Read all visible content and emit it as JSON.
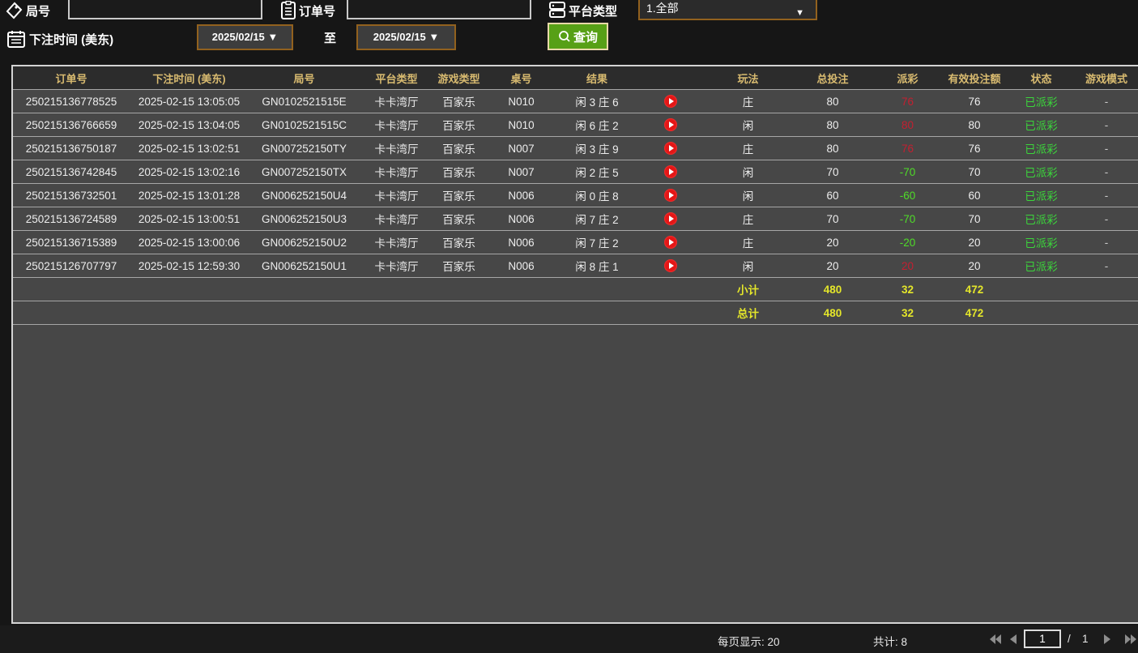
{
  "filters": {
    "round_label": "局号",
    "round_value": "",
    "order_label": "订单号",
    "order_value": "",
    "platform_label": "平台类型",
    "platform_value": "1.全部",
    "dropdown_arrow": "▼",
    "bet_time_label": "下注时间 (美东)",
    "date_from": "2025/02/15 ▼",
    "date_to": "2025/02/15 ▼",
    "to_label": "至",
    "search_label": "查询"
  },
  "table": {
    "headers": [
      "订单号",
      "下注时间 (美东)",
      "局号",
      "平台类型",
      "游戏类型",
      "桌号",
      "结果",
      "",
      "玩法",
      "总投注",
      "派彩",
      "有效投注额",
      "状态",
      "游戏模式"
    ],
    "rows": [
      {
        "order_id": "250215136778525",
        "bet_time": "2025-02-15 13:05:05",
        "round_id": "GN0102521515E",
        "platform": "卡卡湾厅",
        "game_type": "百家乐",
        "table_no": "N010",
        "result": "闲 3 庄 6",
        "bet_on": "庄",
        "total_bet": "80",
        "payout": "76",
        "valid_bet": "76",
        "status": "已派彩",
        "mode": "-"
      },
      {
        "order_id": "250215136766659",
        "bet_time": "2025-02-15 13:04:05",
        "round_id": "GN0102521515C",
        "platform": "卡卡湾厅",
        "game_type": "百家乐",
        "table_no": "N010",
        "result": "闲 6 庄 2",
        "bet_on": "闲",
        "total_bet": "80",
        "payout": "80",
        "valid_bet": "80",
        "status": "已派彩",
        "mode": "-"
      },
      {
        "order_id": "250215136750187",
        "bet_time": "2025-02-15 13:02:51",
        "round_id": "GN007252150TY",
        "platform": "卡卡湾厅",
        "game_type": "百家乐",
        "table_no": "N007",
        "result": "闲 3 庄 9",
        "bet_on": "庄",
        "total_bet": "80",
        "payout": "76",
        "valid_bet": "76",
        "status": "已派彩",
        "mode": "-"
      },
      {
        "order_id": "250215136742845",
        "bet_time": "2025-02-15 13:02:16",
        "round_id": "GN007252150TX",
        "platform": "卡卡湾厅",
        "game_type": "百家乐",
        "table_no": "N007",
        "result": "闲 2 庄 5",
        "bet_on": "闲",
        "total_bet": "70",
        "payout": "-70",
        "valid_bet": "70",
        "status": "已派彩",
        "mode": "-"
      },
      {
        "order_id": "250215136732501",
        "bet_time": "2025-02-15 13:01:28",
        "round_id": "GN006252150U4",
        "platform": "卡卡湾厅",
        "game_type": "百家乐",
        "table_no": "N006",
        "result": "闲 0 庄 8",
        "bet_on": "闲",
        "total_bet": "60",
        "payout": "-60",
        "valid_bet": "60",
        "status": "已派彩",
        "mode": "-"
      },
      {
        "order_id": "250215136724589",
        "bet_time": "2025-02-15 13:00:51",
        "round_id": "GN006252150U3",
        "platform": "卡卡湾厅",
        "game_type": "百家乐",
        "table_no": "N006",
        "result": "闲 7 庄 2",
        "bet_on": "庄",
        "total_bet": "70",
        "payout": "-70",
        "valid_bet": "70",
        "status": "已派彩",
        "mode": "-"
      },
      {
        "order_id": "250215136715389",
        "bet_time": "2025-02-15 13:00:06",
        "round_id": "GN006252150U2",
        "platform": "卡卡湾厅",
        "game_type": "百家乐",
        "table_no": "N006",
        "result": "闲 7 庄 2",
        "bet_on": "庄",
        "total_bet": "20",
        "payout": "-20",
        "valid_bet": "20",
        "status": "已派彩",
        "mode": "-"
      },
      {
        "order_id": "250215126707797",
        "bet_time": "2025-02-15 12:59:30",
        "round_id": "GN006252150U1",
        "platform": "卡卡湾厅",
        "game_type": "百家乐",
        "table_no": "N006",
        "result": "闲 8 庄 1",
        "bet_on": "闲",
        "total_bet": "20",
        "payout": "20",
        "valid_bet": "20",
        "status": "已派彩",
        "mode": "-"
      }
    ],
    "subtotal": {
      "label": "小计",
      "total_bet": "480",
      "payout": "32",
      "valid_bet": "472"
    },
    "grand_total": {
      "label": "总计",
      "total_bet": "480",
      "payout": "32",
      "valid_bet": "472"
    }
  },
  "footer": {
    "per_page_label": "每页显示: 20",
    "total_label": "共计: 8",
    "page": "1",
    "page_separator": "/",
    "total_pages": "1"
  },
  "colors": {
    "header_gold": "#d9bb70",
    "win_red": "#c41f30",
    "loss_green": "#4fdc28",
    "status_green": "#3bd63b",
    "subtotal_yellow": "#e4e62a",
    "search_button_green": "#57a016",
    "picker_border_orange": "#92611e",
    "table_bg": "#474747"
  }
}
